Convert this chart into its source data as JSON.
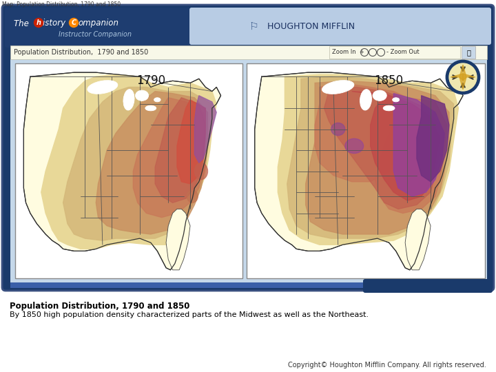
{
  "bg_color": "#ffffff",
  "title_bar_color": "#1a3a6b",
  "light_blue_bg": "#b8cce4",
  "map_bg": "#fffce0",
  "map_border_color": "#1a3a6b",
  "header_text1": "The ",
  "header_h": "h",
  "header_text2": "istory ",
  "header_C": "C",
  "header_text3": "ompanion",
  "header_sub": "Instructor Companion",
  "houghton_text": "HOUGHTON MIFFLIN",
  "map_title": "Population Distribution,  1790 and 1850",
  "year_1790": "1790",
  "year_1850": "1850",
  "caption_title": "Population Distribution, 1790 and 1850",
  "caption_body": "By 1850 high population density characterized parts of the Midwest as well as the Northeast.",
  "copyright": "Copyright© Houghton Mifflin Company. All rights reserved.",
  "browser_tab": "Map: Population Distribution, 1790 and 1850",
  "zoom_label": "Zoom In",
  "zoom_out_label": "- Zoom Out",
  "frame_outer": "#1a3a6b",
  "frame_inner_bg": "#c5d8ea",
  "toolbar_bg": "#f8f8e8",
  "content_bg": "#c5d8ea",
  "compass_ring": "#1a3a6b",
  "compass_fill_light": "#f0e8b0",
  "compass_fill_dark": "#d4a020",
  "red_circle": "#cc2200",
  "orange_circle": "#ff8800"
}
